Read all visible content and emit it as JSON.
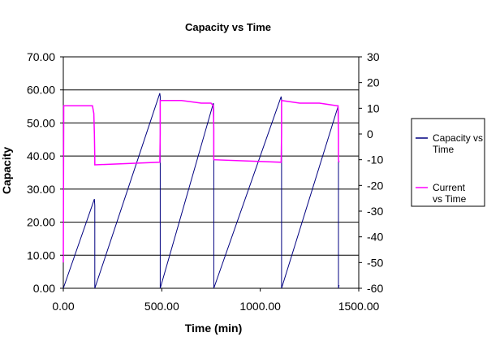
{
  "chart_data": {
    "type": "line",
    "title": "Capacity vs Time",
    "xlabel": "Time (min)",
    "ylabel": "Capacity",
    "y2label": "",
    "xlim": [
      0,
      1500
    ],
    "ylim": [
      0,
      70
    ],
    "y2lim": [
      -60,
      30
    ],
    "x_ticks": [
      "0.00",
      "500.00",
      "1000.00",
      "1500.00"
    ],
    "y_ticks": [
      "0.00",
      "10.00",
      "20.00",
      "30.00",
      "40.00",
      "50.00",
      "60.00",
      "70.00"
    ],
    "y2_ticks": [
      "-60",
      "-50",
      "-40",
      "-30",
      "-20",
      "-10",
      "0",
      "10",
      "20",
      "30"
    ],
    "grid": {
      "horizontal": true,
      "vertical": false
    },
    "legend_position": "right",
    "series": [
      {
        "name": "Capacity vs Time",
        "axis": "left",
        "color": "#000080",
        "x": [
          0,
          158,
          160,
          160,
          490,
          492,
          492,
          762,
          764,
          764,
          1106,
          1108,
          1108,
          1395,
          1397,
          1397,
          1400
        ],
        "y": [
          0,
          27,
          25,
          0,
          59,
          58,
          0,
          56,
          54,
          0,
          58,
          57,
          0,
          55,
          53,
          0,
          1
        ]
      },
      {
        "name": "Current vs Time",
        "axis": "right",
        "color": "#ff00ff",
        "x": [
          0,
          2,
          2,
          148,
          155,
          158,
          160,
          160,
          490,
          492,
          492,
          600,
          700,
          750,
          762,
          764,
          764,
          1106,
          1108,
          1108,
          1200,
          1300,
          1390,
          1395,
          1397,
          1397,
          1400
        ],
        "y": [
          -50,
          8,
          11,
          11,
          8,
          0,
          -10,
          -12,
          -11,
          0,
          13,
          13,
          12,
          12,
          11,
          2,
          -10,
          -11,
          0,
          13,
          12,
          12,
          11,
          11,
          0,
          -10,
          -11
        ]
      }
    ]
  }
}
